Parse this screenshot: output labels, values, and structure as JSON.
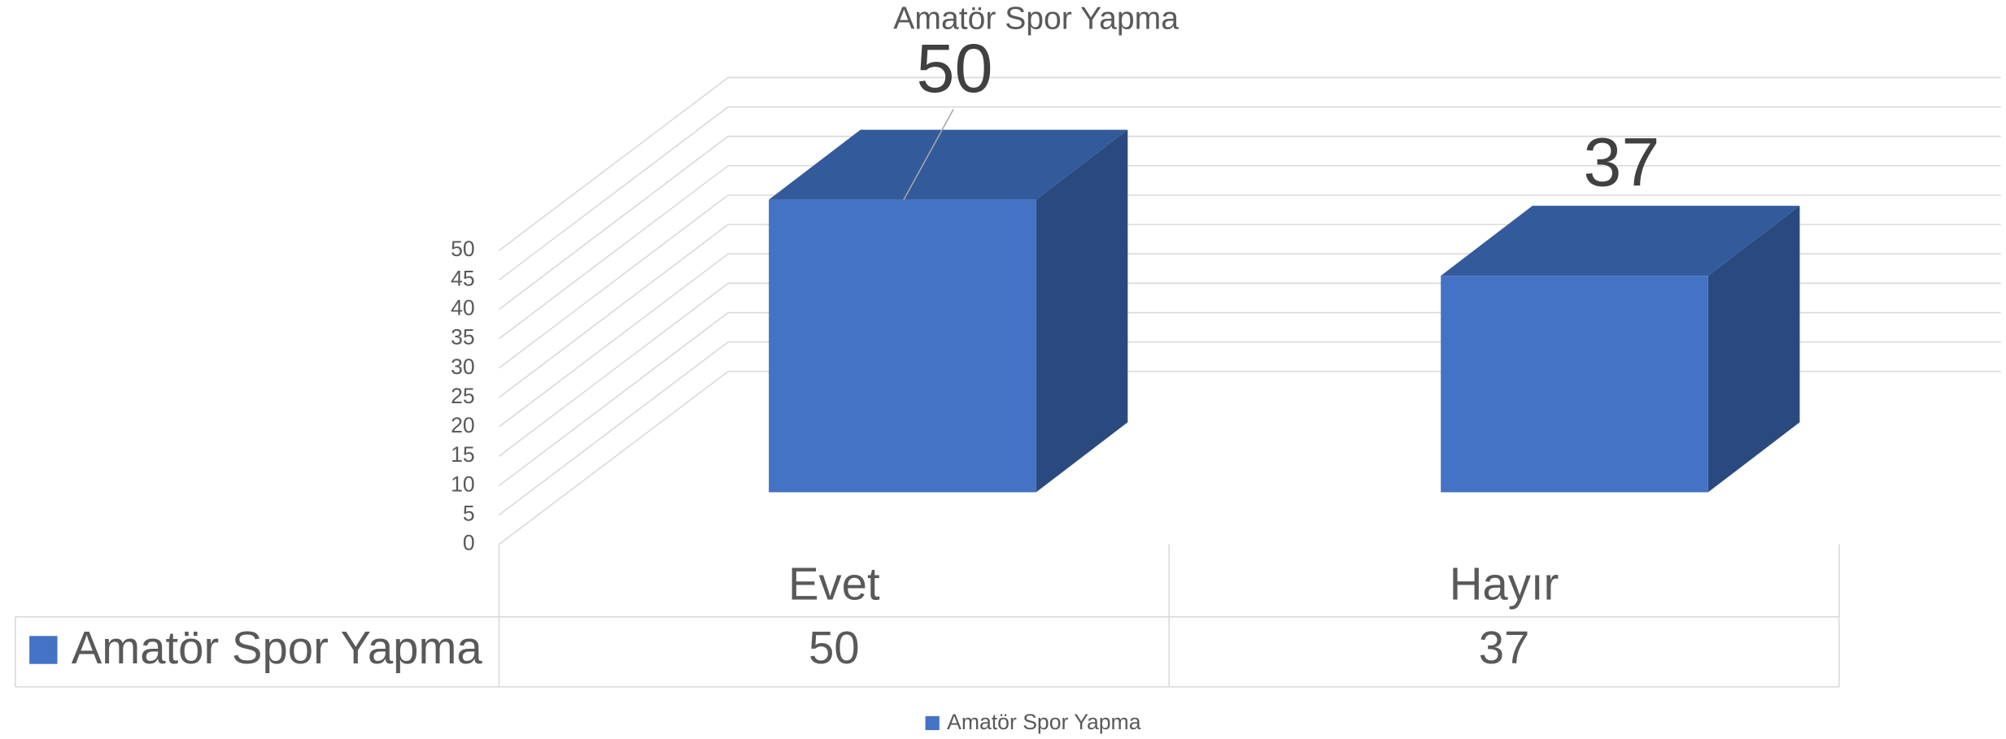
{
  "chart_data": {
    "type": "bar",
    "title": "Amatör Spor Yapma",
    "categories": [
      "Evet",
      "Hayır"
    ],
    "series": [
      {
        "name": "Amatör Spor Yapma",
        "color": "#4472c4",
        "values": [
          50,
          37
        ]
      }
    ],
    "ylim": [
      0,
      50
    ],
    "yticks": [
      0,
      5,
      10,
      15,
      20,
      25,
      30,
      35,
      40,
      45,
      50
    ],
    "grid": true
  }
}
